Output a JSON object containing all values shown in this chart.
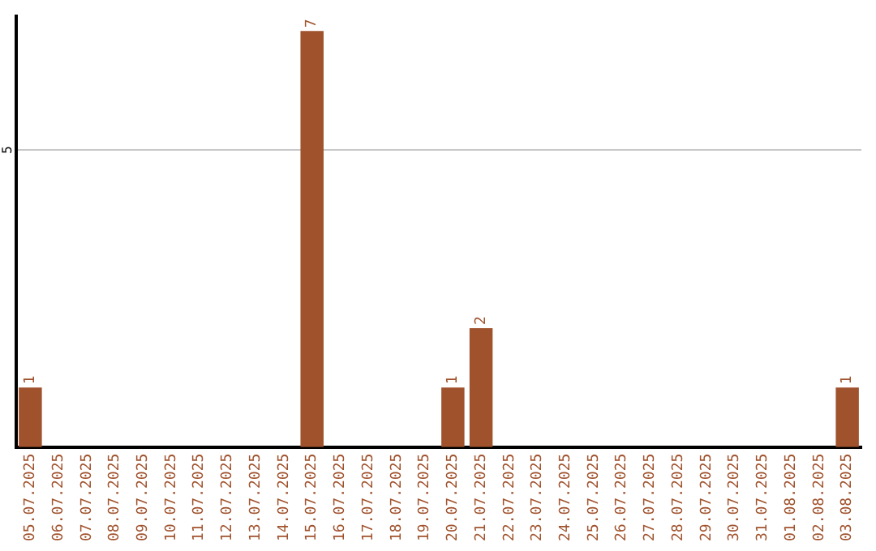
{
  "chart_data": {
    "type": "bar",
    "categories": [
      "05.07.2025",
      "06.07.2025",
      "07.07.2025",
      "08.07.2025",
      "09.07.2025",
      "10.07.2025",
      "11.07.2025",
      "12.07.2025",
      "13.07.2025",
      "14.07.2025",
      "15.07.2025",
      "16.07.2025",
      "17.07.2025",
      "18.07.2025",
      "19.07.2025",
      "20.07.2025",
      "21.07.2025",
      "22.07.2025",
      "23.07.2025",
      "24.07.2025",
      "25.07.2025",
      "26.07.2025",
      "27.07.2025",
      "28.07.2025",
      "29.07.2025",
      "30.07.2025",
      "31.07.2025",
      "01.08.2025",
      "02.08.2025",
      "03.08.2025"
    ],
    "values": [
      1,
      0,
      0,
      0,
      0,
      0,
      0,
      0,
      0,
      0,
      7,
      0,
      0,
      0,
      0,
      1,
      2,
      0,
      0,
      0,
      0,
      0,
      0,
      0,
      0,
      0,
      0,
      0,
      0,
      1
    ],
    "value_labels": [
      "1",
      null,
      null,
      null,
      null,
      null,
      null,
      null,
      null,
      null,
      "7",
      null,
      null,
      null,
      null,
      "1",
      "2",
      null,
      null,
      null,
      null,
      null,
      null,
      null,
      null,
      null,
      null,
      null,
      null,
      "1"
    ],
    "color": "#a0522d",
    "ylim": [
      0,
      7.25
    ],
    "yticks": [
      5
    ],
    "grid": "y",
    "legend": false
  }
}
